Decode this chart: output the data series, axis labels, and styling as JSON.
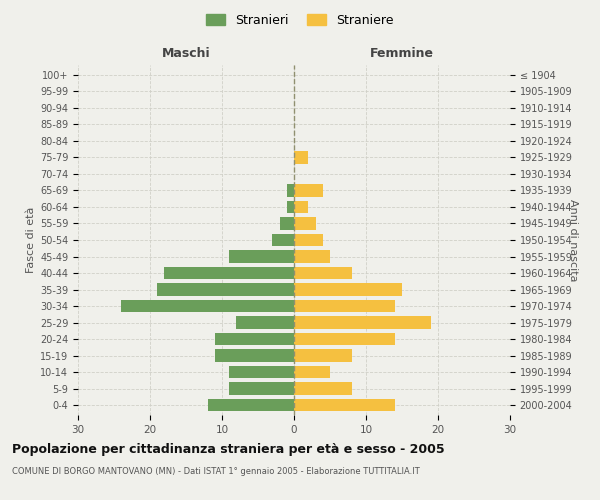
{
  "age_groups": [
    "0-4",
    "5-9",
    "10-14",
    "15-19",
    "20-24",
    "25-29",
    "30-34",
    "35-39",
    "40-44",
    "45-49",
    "50-54",
    "55-59",
    "60-64",
    "65-69",
    "70-74",
    "75-79",
    "80-84",
    "85-89",
    "90-94",
    "95-99",
    "100+"
  ],
  "birth_years": [
    "2000-2004",
    "1995-1999",
    "1990-1994",
    "1985-1989",
    "1980-1984",
    "1975-1979",
    "1970-1974",
    "1965-1969",
    "1960-1964",
    "1955-1959",
    "1950-1954",
    "1945-1949",
    "1940-1944",
    "1935-1939",
    "1930-1934",
    "1925-1929",
    "1920-1924",
    "1915-1919",
    "1910-1914",
    "1905-1909",
    "≤ 1904"
  ],
  "maschi": [
    12,
    9,
    9,
    11,
    11,
    8,
    24,
    19,
    18,
    9,
    3,
    2,
    1,
    1,
    0,
    0,
    0,
    0,
    0,
    0,
    0
  ],
  "femmine": [
    14,
    8,
    5,
    8,
    14,
    19,
    14,
    15,
    8,
    5,
    4,
    3,
    2,
    4,
    0,
    2,
    0,
    0,
    0,
    0,
    0
  ],
  "color_maschi": "#6a9e5a",
  "color_femmine": "#f5c040",
  "title": "Popolazione per cittadinanza straniera per età e sesso - 2005",
  "subtitle": "COMUNE DI BORGO MANTOVANO (MN) - Dati ISTAT 1° gennaio 2005 - Elaborazione TUTTITALIA.IT",
  "xlabel_left": "Maschi",
  "xlabel_right": "Femmine",
  "ylabel_left": "Fasce di età",
  "ylabel_right": "Anni di nascita",
  "legend_maschi": "Stranieri",
  "legend_femmine": "Straniere",
  "xlim": 30,
  "background_color": "#f0f0eb",
  "grid_color": "#d0d0c8"
}
